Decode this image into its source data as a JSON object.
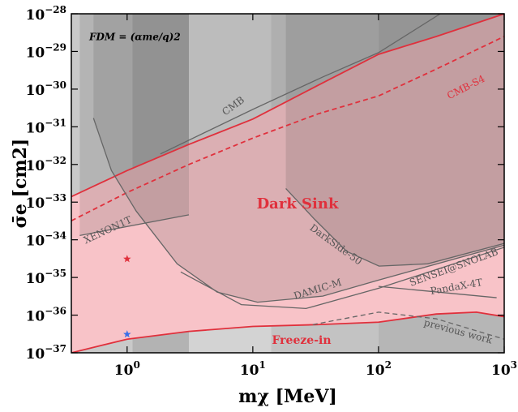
{
  "chart_data": {
    "type": "line",
    "annotation": "FDM = (αme/q)2",
    "x_label": "mχ [MeV]",
    "y_label": "σ̄e [cm2]",
    "log_x": true,
    "log_y": true,
    "xlim": [
      0.36,
      1000
    ],
    "ylim": [
      1e-37,
      1e-28
    ],
    "xticks": [
      {
        "value": 1,
        "label": "100"
      },
      {
        "value": 10,
        "label": "101"
      },
      {
        "value": 100,
        "label": "102"
      },
      {
        "value": 1000,
        "label": "103"
      }
    ],
    "yticks": [
      {
        "value": 1e-28,
        "label": "10−28"
      },
      {
        "value": 1e-29,
        "label": "10−29"
      },
      {
        "value": 1e-30,
        "label": "10−30"
      },
      {
        "value": 1e-31,
        "label": "10−31"
      },
      {
        "value": 1e-32,
        "label": "10−32"
      },
      {
        "value": 1e-33,
        "label": "10−33"
      },
      {
        "value": 1e-34,
        "label": "10−34"
      },
      {
        "value": 1e-35,
        "label": "10−35"
      },
      {
        "value": 1e-36,
        "label": "10−36"
      },
      {
        "value": 1e-37,
        "label": "10−37"
      }
    ],
    "bands": [
      {
        "x": [
          0.36,
          1.1
        ],
        "color": "#c9c9c9"
      },
      {
        "x": [
          1.1,
          3.1
        ],
        "color": "#b3b3b3"
      },
      {
        "x": [
          3.1,
          14
        ],
        "color": "#d3d3d3"
      },
      {
        "x": [
          14,
          100
        ],
        "color": "#c3c3c3"
      },
      {
        "x": [
          100,
          1000
        ],
        "color": "#b6b6b6"
      }
    ],
    "region_color": "#f8c3c8",
    "series": [
      {
        "name": "Dark Sink",
        "color": "#e0303c",
        "dash": false,
        "x": [
          0.36,
          1,
          3.1,
          10,
          33,
          100,
          288,
          1000
        ],
        "values": [
          1.4e-33,
          6.9e-33,
          3.4e-32,
          1.6e-31,
          1.26e-30,
          8.4e-30,
          2.5e-29,
          1e-28
        ]
      },
      {
        "name": "CMB-S4",
        "color": "#e0303c",
        "dash": true,
        "x": [
          0.36,
          1,
          3.1,
          10,
          33,
          100,
          288,
          1000
        ],
        "values": [
          3.2e-34,
          1.8e-33,
          1e-32,
          5e-32,
          2.2e-31,
          6.6e-31,
          3.4e-30,
          2.5e-29
        ]
      },
      {
        "name": "Freeze-in",
        "color": "#e0303c",
        "dash": false,
        "x": [
          0.36,
          1,
          3.1,
          10,
          33,
          100,
          288,
          600,
          1000
        ],
        "values": [
          1e-37,
          2.3e-37,
          3.7e-37,
          5e-37,
          5.6e-37,
          6.5e-37,
          1.07e-36,
          1.2e-36,
          9.1e-37
        ]
      },
      {
        "name": "previous work",
        "color": "#666666",
        "dash": true,
        "x": [
          30,
          100,
          288,
          1000
        ],
        "values": [
          5.6e-37,
          1.2e-36,
          8e-37,
          2.3e-37
        ]
      },
      {
        "name": "CMB",
        "color": "#666666",
        "dash": false,
        "x": [
          1.84,
          10,
          36,
          100,
          310
        ],
        "values": [
          1.9e-32,
          2.9e-31,
          2.1e-30,
          9.3e-30,
          1e-28
        ]
      },
      {
        "name": "XENON1T",
        "color": "#666666",
        "dash": false,
        "shade": true,
        "x": [
          0.42,
          3.1
        ],
        "values": [
          1.3e-34,
          4.6e-34
        ]
      },
      {
        "name": "DarkSide-50",
        "color": "#666666",
        "dash": false,
        "shade": true,
        "x": [
          18.3,
          31,
          56,
          101,
          246,
          1000
        ],
        "values": [
          2.3e-33,
          3.5e-34,
          4.9e-35,
          2e-35,
          2.3e-35,
          8e-35
        ]
      },
      {
        "name": "DAMIC-M",
        "color": "#666666",
        "dash": false,
        "shade": true,
        "x": [
          0.54,
          0.75,
          1.18,
          2.5,
          5.2,
          10.9,
          36,
          100,
          1000
        ],
        "values": [
          1.7e-31,
          6.9e-33,
          5.8e-34,
          2.3e-35,
          4.1e-36,
          2.2e-36,
          3.2e-36,
          8.5e-36,
          7.2e-35
        ]
      },
      {
        "name": "SENSEI@SNOLAB",
        "color": "#666666",
        "dash": false,
        "x": [
          2.67,
          8.1,
          26.5,
          101,
          1000
        ],
        "values": [
          1.4e-35,
          1.9e-36,
          1.5e-36,
          5.2e-36,
          6.3e-35
        ]
      },
      {
        "name": "PandaX-4T",
        "color": "#666666",
        "dash": false,
        "x": [
          100,
          870
        ],
        "values": [
          5.8e-36,
          2.9e-36
        ]
      }
    ],
    "points": [
      {
        "x": 1,
        "y": 3.1e-35,
        "color": "#e0303c"
      },
      {
        "x": 1,
        "y": 3.1e-37,
        "color": "#3a6fe8"
      }
    ]
  }
}
